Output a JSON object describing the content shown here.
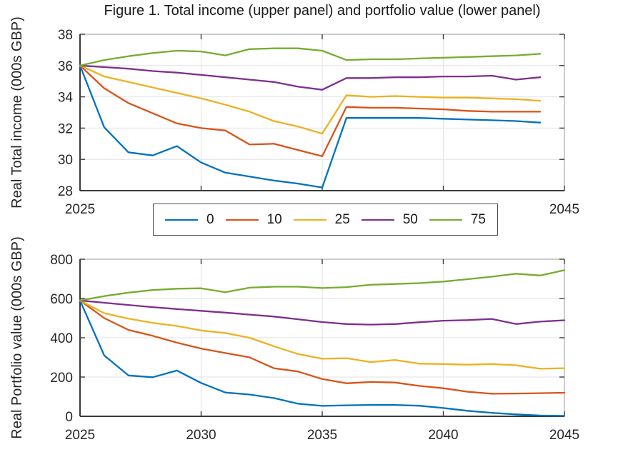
{
  "figure": {
    "title": "Figure 1. Total income (upper panel) and portfolio value (lower panel)"
  },
  "colors": {
    "blue": "#0072BD",
    "orange": "#D95319",
    "yellow": "#EDB120",
    "purple": "#7E2F8E",
    "green": "#77AC30",
    "grid": "#e2e2e2",
    "axis_box": "#9a9a9a",
    "axis_main": "#3a3a3a"
  },
  "legend": {
    "entries": [
      {
        "label": "0",
        "color": "#0072BD"
      },
      {
        "label": "10",
        "color": "#D95319"
      },
      {
        "label": "25",
        "color": "#EDB120"
      },
      {
        "label": "50",
        "color": "#7E2F8E"
      },
      {
        "label": "75",
        "color": "#77AC30"
      }
    ]
  },
  "chart_data": [
    {
      "type": "line",
      "panel": "upper",
      "ylabel": "Real Total income (000s GBP)",
      "xlim": [
        2025,
        2045
      ],
      "ylim": [
        28,
        38
      ],
      "xticks": [
        2025,
        2030,
        2035,
        2040,
        2045
      ],
      "xtick_labels": [
        "2025",
        "",
        "",
        "",
        "2045"
      ],
      "yticks": [
        28,
        30,
        32,
        34,
        36,
        38
      ],
      "ytick_labels": [
        "28",
        "30",
        "32",
        "34",
        "36",
        "38"
      ],
      "grid": true,
      "x": [
        2025,
        2026,
        2027,
        2028,
        2029,
        2030,
        2031,
        2032,
        2033,
        2034,
        2035,
        2036,
        2037,
        2038,
        2039,
        2040,
        2041,
        2042,
        2043,
        2044
      ],
      "series": [
        {
          "name": "0",
          "color": "#0072BD",
          "values": [
            36,
            32.05,
            30.45,
            30.25,
            30.85,
            29.8,
            29.15,
            28.9,
            28.65,
            28.45,
            28.2,
            32.65,
            32.65,
            32.65,
            32.65,
            32.6,
            32.55,
            32.5,
            32.45,
            32.35
          ]
        },
        {
          "name": "10",
          "color": "#D95319",
          "values": [
            36,
            34.55,
            33.6,
            32.95,
            32.3,
            32.0,
            31.85,
            30.95,
            31.0,
            30.6,
            30.2,
            33.35,
            33.3,
            33.3,
            33.25,
            33.2,
            33.1,
            33.05,
            33.05,
            33.05
          ]
        },
        {
          "name": "25",
          "color": "#EDB120",
          "values": [
            36,
            35.3,
            34.95,
            34.6,
            34.25,
            33.9,
            33.5,
            33.05,
            32.45,
            32.1,
            31.65,
            34.1,
            34.0,
            34.05,
            34.0,
            33.95,
            33.95,
            33.9,
            33.85,
            33.75
          ]
        },
        {
          "name": "50",
          "color": "#7E2F8E",
          "values": [
            36,
            35.9,
            35.8,
            35.65,
            35.55,
            35.4,
            35.25,
            35.1,
            34.95,
            34.65,
            34.45,
            35.2,
            35.2,
            35.25,
            35.25,
            35.3,
            35.3,
            35.35,
            35.1,
            35.25
          ]
        },
        {
          "name": "75",
          "color": "#77AC30",
          "values": [
            36,
            36.35,
            36.6,
            36.8,
            36.95,
            36.9,
            36.65,
            37.05,
            37.1,
            37.1,
            36.95,
            36.35,
            36.4,
            36.4,
            36.45,
            36.5,
            36.55,
            36.6,
            36.65,
            36.75
          ]
        }
      ]
    },
    {
      "type": "line",
      "panel": "lower",
      "ylabel": "Real Portfolio value (000s GBP)",
      "xlim": [
        2025,
        2045
      ],
      "ylim": [
        0,
        800
      ],
      "xticks": [
        2025,
        2030,
        2035,
        2040,
        2045
      ],
      "xtick_labels": [
        "2025",
        "2030",
        "2035",
        "2040",
        "2045"
      ],
      "yticks": [
        0,
        200,
        400,
        600,
        800
      ],
      "ytick_labels": [
        "0",
        "200",
        "400",
        "600",
        "800"
      ],
      "grid": true,
      "x": [
        2025,
        2026,
        2027,
        2028,
        2029,
        2030,
        2031,
        2032,
        2033,
        2034,
        2035,
        2036,
        2037,
        2038,
        2039,
        2040,
        2041,
        2042,
        2043,
        2044,
        2045
      ],
      "series": [
        {
          "name": "0",
          "color": "#0072BD",
          "values": [
            590,
            310,
            208,
            199,
            233,
            170,
            121,
            111,
            93,
            64,
            53,
            56,
            58,
            58,
            54,
            42,
            28,
            18,
            10,
            4,
            2
          ]
        },
        {
          "name": "10",
          "color": "#D95319",
          "values": [
            590,
            500,
            440,
            410,
            375,
            345,
            322,
            300,
            245,
            228,
            190,
            168,
            175,
            172,
            155,
            143,
            125,
            115,
            116,
            118,
            120
          ]
        },
        {
          "name": "25",
          "color": "#EDB120",
          "values": [
            590,
            525,
            497,
            476,
            460,
            437,
            424,
            400,
            357,
            317,
            293,
            296,
            276,
            287,
            268,
            266,
            263,
            266,
            260,
            242,
            245
          ]
        },
        {
          "name": "50",
          "color": "#7E2F8E",
          "values": [
            590,
            578,
            567,
            556,
            546,
            537,
            528,
            518,
            508,
            494,
            480,
            470,
            467,
            470,
            479,
            487,
            490,
            496,
            470,
            482,
            489
          ]
        },
        {
          "name": "75",
          "color": "#77AC30",
          "values": [
            590,
            612,
            630,
            643,
            650,
            652,
            632,
            655,
            660,
            660,
            653,
            658,
            670,
            674,
            678,
            686,
            698,
            711,
            726,
            717,
            744
          ]
        }
      ]
    }
  ]
}
